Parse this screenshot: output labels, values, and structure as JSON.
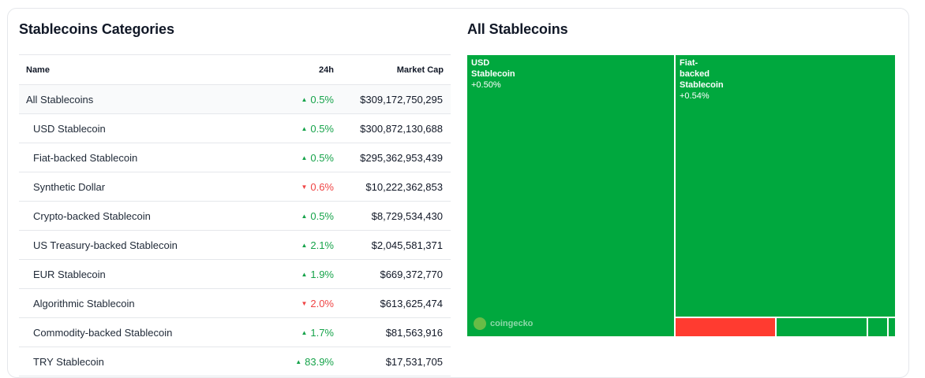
{
  "left": {
    "title": "Stablecoins Categories",
    "columns": {
      "name": "Name",
      "change": "24h",
      "market_cap": "Market Cap"
    },
    "rows": [
      {
        "name": "All Stablecoins",
        "change": "0.5%",
        "direction": "up",
        "market_cap": "$309,172,750,295"
      },
      {
        "name": "USD Stablecoin",
        "change": "0.5%",
        "direction": "up",
        "market_cap": "$300,872,130,688"
      },
      {
        "name": "Fiat-backed Stablecoin",
        "change": "0.5%",
        "direction": "up",
        "market_cap": "$295,362,953,439"
      },
      {
        "name": "Synthetic Dollar",
        "change": "0.6%",
        "direction": "down",
        "market_cap": "$10,222,362,853"
      },
      {
        "name": "Crypto-backed Stablecoin",
        "change": "0.5%",
        "direction": "up",
        "market_cap": "$8,729,534,430"
      },
      {
        "name": "US Treasury-backed Stablecoin",
        "change": "2.1%",
        "direction": "up",
        "market_cap": "$2,045,581,371"
      },
      {
        "name": "EUR Stablecoin",
        "change": "1.9%",
        "direction": "up",
        "market_cap": "$669,372,770"
      },
      {
        "name": "Algorithmic Stablecoin",
        "change": "2.0%",
        "direction": "down",
        "market_cap": "$613,625,474"
      },
      {
        "name": "Commodity-backed Stablecoin",
        "change": "1.7%",
        "direction": "up",
        "market_cap": "$81,563,916"
      },
      {
        "name": "TRY Stablecoin",
        "change": "83.9%",
        "direction": "up",
        "market_cap": "$17,531,705"
      }
    ]
  },
  "right": {
    "title": "All Stablecoins",
    "tiles": [
      {
        "label": "USD Stablecoin",
        "label_lines": [
          "USD",
          "Stablecoin"
        ],
        "change": "+0.50%",
        "color": "#00a83e"
      },
      {
        "label": "Fiat-backed Stablecoin",
        "label_lines": [
          "Fiat-",
          "backed",
          "Stablecoin"
        ],
        "change": "+0.54%",
        "color": "#00a83e"
      }
    ],
    "small_tiles": [
      {
        "color": "#ff3b30"
      },
      {
        "color": "#00a83e"
      },
      {
        "color": "#00a83e"
      },
      {
        "color": "#00a83e"
      }
    ],
    "watermark": "coingecko"
  },
  "colors": {
    "up": "#16a34a",
    "down": "#ef4444",
    "tile_green": "#00a83e",
    "tile_red": "#ff3b30"
  }
}
